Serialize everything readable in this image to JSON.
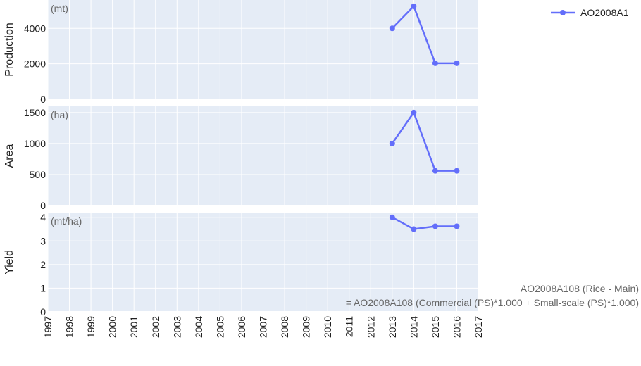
{
  "chart_data": {
    "type": "line",
    "x_ticks": [
      "1997",
      "1998",
      "1999",
      "2000",
      "2001",
      "2002",
      "2003",
      "2004",
      "2005",
      "2006",
      "2007",
      "2008",
      "2009",
      "2010",
      "2011",
      "2012",
      "2013",
      "2014",
      "2015",
      "2016",
      "2017"
    ],
    "xlim": [
      1997,
      2017
    ],
    "series_name": "AO2008A1",
    "color": "#636efa",
    "panels": [
      {
        "ylabel": "Production",
        "unit": "(mt)",
        "ylim": [
          0,
          5600
        ],
        "yticks": [
          0,
          2000,
          4000
        ],
        "points": [
          [
            2013,
            4000
          ],
          [
            2014,
            5250
          ],
          [
            2015,
            2030
          ],
          [
            2016,
            2030
          ]
        ]
      },
      {
        "ylabel": "Area",
        "unit": "(ha)",
        "ylim": [
          0,
          1600
        ],
        "yticks": [
          0,
          500,
          1000,
          1500
        ],
        "points": [
          [
            2013,
            1000
          ],
          [
            2014,
            1500
          ],
          [
            2015,
            560
          ],
          [
            2016,
            560
          ]
        ]
      },
      {
        "ylabel": "Yield",
        "unit": "(mt/ha)",
        "ylim": [
          0,
          4.2
        ],
        "yticks": [
          0,
          1,
          2,
          3,
          4
        ],
        "points": [
          [
            2013,
            4.0
          ],
          [
            2014,
            3.5
          ],
          [
            2015,
            3.62
          ],
          [
            2016,
            3.62
          ]
        ]
      }
    ],
    "annotations": [
      "AO2008A108 (Rice - Main)",
      "= AO2008A108 (Commercial (PS)*1.000 + Small-scale (PS)*1.000)"
    ],
    "legend_position": "top-right",
    "plot_bg": "#e5ecf6",
    "grid": true
  }
}
